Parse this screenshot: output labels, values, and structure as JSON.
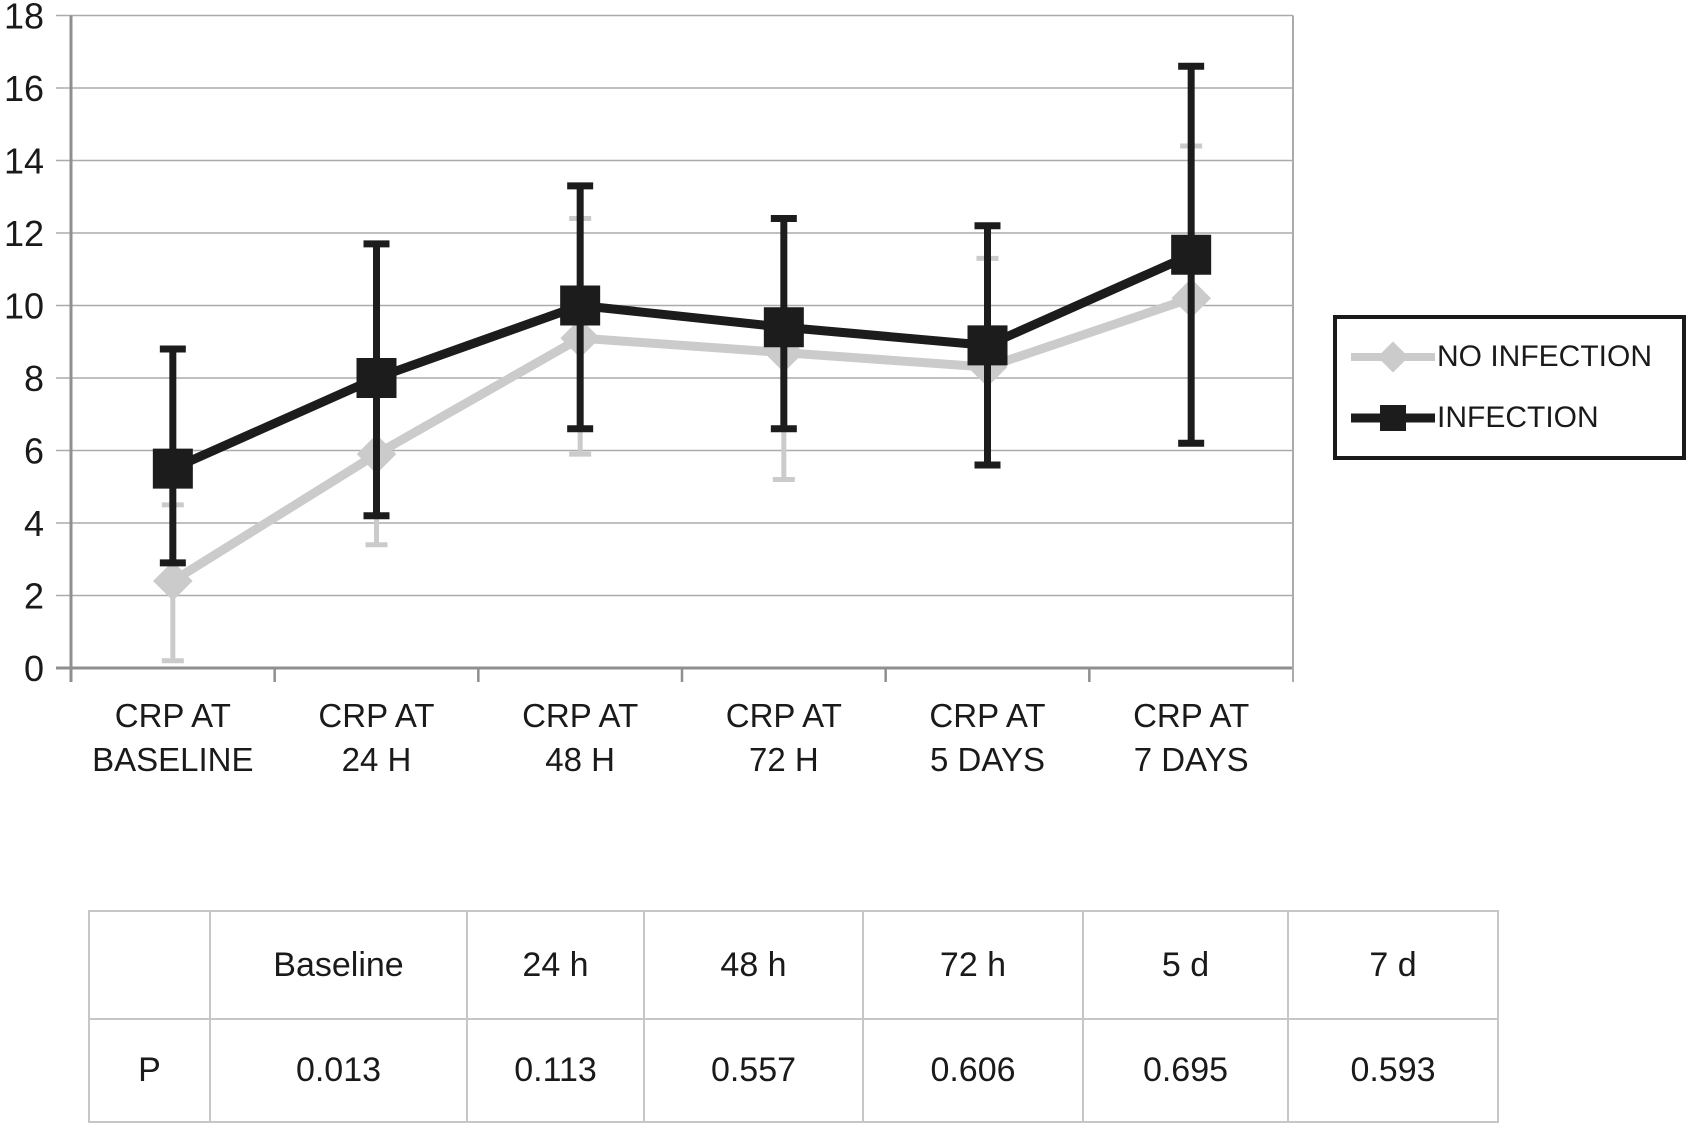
{
  "colors": {
    "text": "#1a1a1a",
    "grid": "#ababab",
    "axis": "#8f8f8f",
    "table_border": "#c6c6c6",
    "no_infection_gray": "#cbcbcb",
    "infection_black": "#1c1c1c"
  },
  "chart_data": {
    "type": "line",
    "title": "",
    "xlabel": "",
    "ylabel": "",
    "ylim": [
      0,
      18
    ],
    "ytick_step": 2,
    "grid": true,
    "legend_position": "right",
    "categories": [
      "CRP AT\nBASELINE",
      "CRP AT\n24 H",
      "CRP AT\n48 H",
      "CRP AT\n72 H",
      "CRP AT\n5 DAYS",
      "CRP AT\n7 DAYS"
    ],
    "series": [
      {
        "name": "NO INFECTION",
        "color": "#cbcbcb",
        "marker": "diamond",
        "values": [
          2.4,
          5.9,
          9.1,
          8.7,
          8.3,
          10.2
        ],
        "err_top": [
          4.5,
          8.0,
          12.4,
          9.4,
          11.3,
          14.4
        ],
        "err_bottom": [
          0.2,
          3.4,
          5.9,
          5.2,
          5.6,
          6.2
        ]
      },
      {
        "name": "INFECTION",
        "color": "#1c1c1c",
        "marker": "square",
        "values": [
          5.5,
          8.0,
          10.0,
          9.4,
          8.9,
          11.4
        ],
        "err_top": [
          8.8,
          11.7,
          13.3,
          12.4,
          12.2,
          16.6
        ],
        "err_bottom": [
          2.9,
          4.2,
          6.6,
          6.6,
          5.6,
          6.2
        ]
      }
    ]
  },
  "legend": {
    "entries": [
      "NO INFECTION",
      "INFECTION"
    ]
  },
  "table": {
    "headers": [
      "",
      "Baseline",
      "24 h",
      "48 h",
      "72 h",
      "5 d",
      "7 d"
    ],
    "rows": [
      [
        "P",
        "0.013",
        "0.113",
        "0.557",
        "0.606",
        "0.695",
        "0.593"
      ]
    ]
  }
}
